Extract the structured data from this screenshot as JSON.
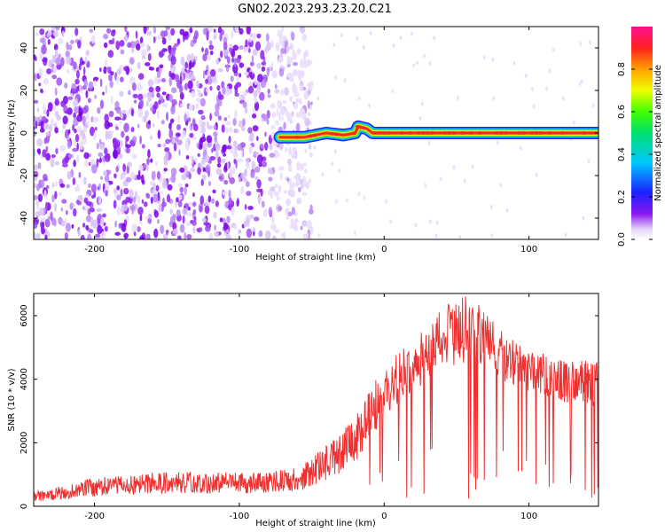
{
  "title": "GN02.2023.293.23.20.C21",
  "colors": {
    "snr_line": "#f03030",
    "spec_noise": "#7a00e8",
    "spec_noise_light": "#d8c2f7",
    "spec_signal_core": "#f02828",
    "frame": "#000000"
  },
  "chart_data": [
    {
      "type": "heatmap",
      "title": "GN02.2023.293.23.20.C21",
      "xlabel": "Height of straight line (km)",
      "ylabel": "Frequency (Hz)",
      "xlim": [
        -242,
        148
      ],
      "ylim": [
        -50,
        50
      ],
      "xticks": [
        -200,
        -100,
        0,
        100
      ],
      "yticks": [
        -40,
        -20,
        0,
        20,
        40
      ],
      "colorbar": {
        "label": "Normalized spectral amplitude",
        "range": [
          0,
          1
        ],
        "ticks": [
          "0.0",
          "0.2",
          "0.4",
          "0.6",
          "0.8"
        ],
        "tick_values": [
          0,
          0.2,
          0.4,
          0.6,
          0.8
        ],
        "colormap": "purple-blue-cyan-green-yellow-orange-red-magenta"
      },
      "noise_region": {
        "x_from": -242,
        "x_to": -58,
        "amplitude": [
          0.0,
          0.2
        ]
      },
      "signal_band": {
        "x_from": -72,
        "x_to": 148,
        "center_hz": [
          {
            "x": -72,
            "y": -2
          },
          {
            "x": -55,
            "y": -2
          },
          {
            "x": -40,
            "y": 0
          },
          {
            "x": -28,
            "y": -1
          },
          {
            "x": -20,
            "y": 0
          },
          {
            "x": -18,
            "y": 3
          },
          {
            "x": -12,
            "y": 2
          },
          {
            "x": -8,
            "y": 0
          },
          {
            "x": 148,
            "y": 0
          }
        ],
        "peak_amplitude": 0.95
      }
    },
    {
      "type": "line",
      "xlabel": "Height of straight line (km)",
      "ylabel": "SNR (10 * v/v)",
      "xlim": [
        -242,
        148
      ],
      "ylim": [
        0,
        6700
      ],
      "xticks": [
        -200,
        -100,
        0,
        100
      ],
      "yticks": [
        0,
        2000,
        4000,
        6000
      ],
      "envelope": [
        {
          "x": -242,
          "base": 150,
          "peak": 450
        },
        {
          "x": -200,
          "base": 300,
          "peak": 900
        },
        {
          "x": -150,
          "base": 400,
          "peak": 1100
        },
        {
          "x": -100,
          "base": 400,
          "peak": 1050
        },
        {
          "x": -60,
          "base": 450,
          "peak": 1200
        },
        {
          "x": -40,
          "base": 800,
          "peak": 1900
        },
        {
          "x": -20,
          "base": 1300,
          "peak": 2800
        },
        {
          "x": 0,
          "base": 2800,
          "peak": 4500
        },
        {
          "x": 20,
          "base": 3600,
          "peak": 5200
        },
        {
          "x": 40,
          "base": 4300,
          "peak": 6300
        },
        {
          "x": 60,
          "base": 4600,
          "peak": 6700
        },
        {
          "x": 80,
          "base": 4000,
          "peak": 5600
        },
        {
          "x": 100,
          "base": 3600,
          "peak": 5000
        },
        {
          "x": 120,
          "base": 3300,
          "peak": 4600
        },
        {
          "x": 148,
          "base": 3100,
          "peak": 4700
        }
      ]
    }
  ]
}
